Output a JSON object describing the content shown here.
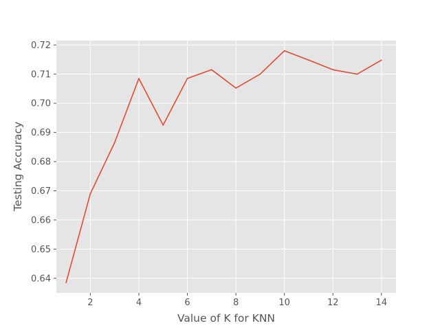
{
  "chart_data": {
    "type": "line",
    "title": "",
    "xlabel": "Value of K for KNN",
    "ylabel": "Testing Accuracy",
    "xlim": [
      0.6,
      14.6
    ],
    "ylim": [
      0.635,
      0.7215
    ],
    "xticks": [
      2,
      4,
      6,
      8,
      10,
      12,
      14
    ],
    "yticks": [
      0.64,
      0.65,
      0.66,
      0.67,
      0.68,
      0.69,
      0.7,
      0.71,
      0.72
    ],
    "ytick_labels": [
      "0.64",
      "0.65",
      "0.66",
      "0.67",
      "0.68",
      "0.69",
      "0.70",
      "0.71",
      "0.72"
    ],
    "grid": true,
    "legend": "none",
    "background_color": "#e5e5e5",
    "line_color": "#e24a33",
    "series": [
      {
        "x": [
          1,
          2,
          3,
          4,
          5,
          6,
          7,
          8,
          9,
          10,
          11,
          12,
          13,
          14
        ],
        "y": [
          0.6385,
          0.669,
          0.6865,
          0.7085,
          0.6925,
          0.7085,
          0.7115,
          0.7052,
          0.71,
          0.718,
          0.7148,
          0.7115,
          0.71,
          0.7148
        ]
      }
    ]
  }
}
